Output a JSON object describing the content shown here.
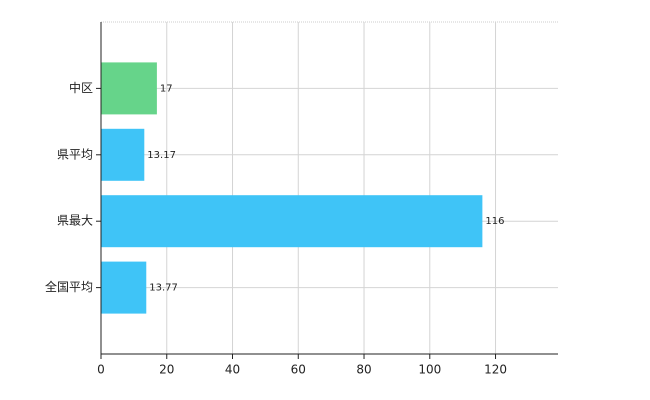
{
  "chart_data": {
    "type": "barh",
    "categories": [
      "中区",
      "県平均",
      "県最大",
      "全国平均"
    ],
    "values": [
      17,
      13.17,
      116,
      13.77
    ],
    "colors": [
      "#66d48a",
      "#3fc4f7",
      "#3fc4f7",
      "#3fc4f7"
    ],
    "xlim": [
      0,
      139
    ],
    "xticks": [
      0,
      20,
      40,
      60,
      80,
      100,
      120
    ],
    "grid": true
  }
}
